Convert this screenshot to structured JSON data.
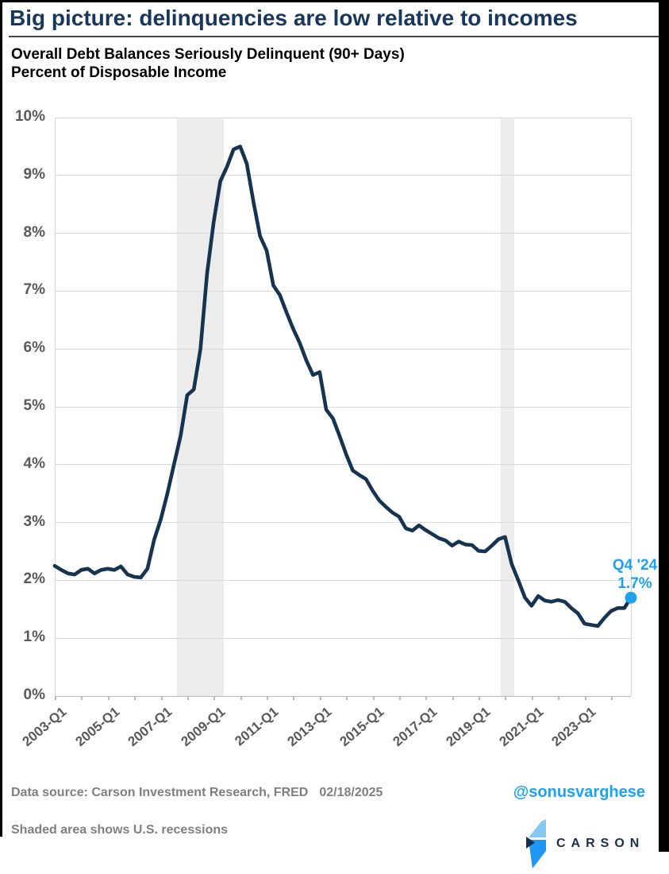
{
  "page": {
    "title": "Big picture: delinquencies are low relative to incomes",
    "subtitle_line1": "Overall Debt Balances Seriously Delinquent (90+ Days)",
    "subtitle_line2": "Percent of Disposable Income"
  },
  "footer": {
    "data_source": "Data source: Carson Investment Research, FRED",
    "date": "02/18/2025",
    "handle": "@sonusvarghese",
    "recession_note": "Shaded area shows U.S. recessions",
    "logo_text": "CARSON"
  },
  "colors": {
    "title_navy": "#17375c",
    "line_navy": "#16344f",
    "accent_blue": "#1da1f2",
    "axis_gray": "#595959",
    "footer_gray": "#7f7f7f",
    "gridline_gray": "#d9d9d9",
    "recession_band_gray": "#ececec",
    "logo_navy": "#1b2e4a",
    "logo_light_blue": "#85c8f2",
    "logo_bright_blue": "#2196f3"
  },
  "chart_data": {
    "type": "line",
    "title": "Overall Debt Balances Seriously Delinquent (90+ Days) Percent of Disposable Income",
    "frequency": "quarterly",
    "x_start": "2003-Q1",
    "x_end": "2024-Q4",
    "ylim": [
      0,
      10
    ],
    "grid": "horizontal",
    "y_tick_labels": [
      "0%",
      "1%",
      "2%",
      "3%",
      "4%",
      "5%",
      "6%",
      "7%",
      "8%",
      "9%",
      "10%"
    ],
    "x_tick_labels": [
      "2003-Q1",
      "2005-Q1",
      "2007-Q1",
      "2009-Q1",
      "2011-Q1",
      "2013-Q1",
      "2015-Q1",
      "2017-Q1",
      "2019-Q1",
      "2021-Q1",
      "2023-Q1"
    ],
    "values": [
      2.25,
      2.18,
      2.12,
      2.1,
      2.18,
      2.2,
      2.12,
      2.18,
      2.2,
      2.18,
      2.24,
      2.1,
      2.06,
      2.05,
      2.2,
      2.7,
      3.05,
      3.5,
      4.0,
      4.5,
      5.2,
      5.3,
      6.0,
      7.3,
      8.2,
      8.9,
      9.15,
      9.45,
      9.5,
      9.2,
      8.55,
      7.95,
      7.7,
      7.1,
      6.93,
      6.63,
      6.35,
      6.1,
      5.8,
      5.55,
      5.6,
      4.95,
      4.8,
      4.5,
      4.18,
      3.9,
      3.82,
      3.75,
      3.55,
      3.38,
      3.27,
      3.17,
      3.1,
      2.9,
      2.86,
      2.95,
      2.87,
      2.8,
      2.73,
      2.69,
      2.6,
      2.67,
      2.62,
      2.61,
      2.51,
      2.5,
      2.6,
      2.71,
      2.75,
      2.28,
      2.0,
      1.7,
      1.56,
      1.73,
      1.65,
      1.63,
      1.66,
      1.63,
      1.52,
      1.43,
      1.25,
      1.23,
      1.21,
      1.35,
      1.47,
      1.52,
      1.52,
      1.7
    ],
    "recession_bands": [
      {
        "label": "Great Recession",
        "start": "2007-Q4",
        "end": "2009-Q2",
        "start_index": 18.4,
        "end_index": 25.5
      },
      {
        "label": "COVID recession",
        "start": "2020-Q1",
        "end": "2020-Q2",
        "start_index": 67.3,
        "end_index": 69.35
      }
    ],
    "annotation": {
      "line1": "Q4 '24",
      "line2": "1.7%",
      "value": 1.7,
      "x_index": 87
    }
  }
}
